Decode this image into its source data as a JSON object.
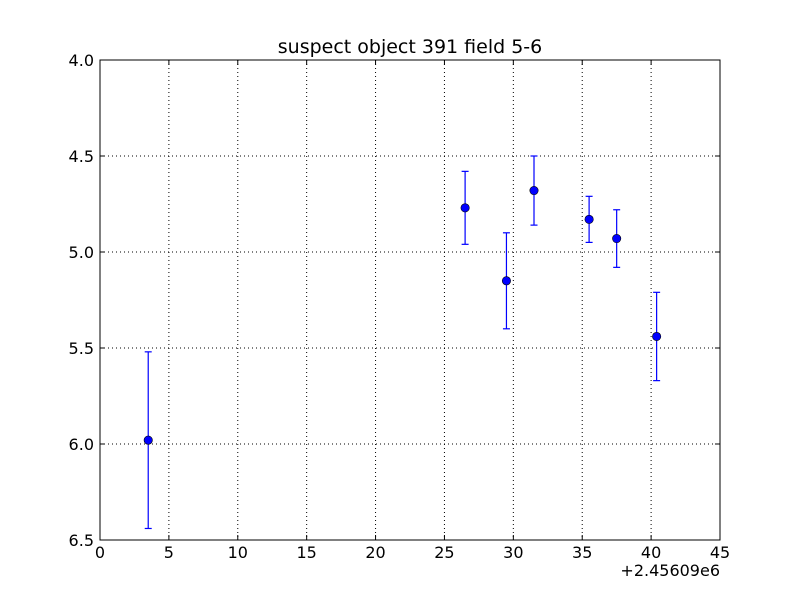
{
  "chart_data": {
    "type": "scatter",
    "title": "suspect object 391 field 5-6",
    "xlabel": "",
    "ylabel": "",
    "x_offset_label": "+2.45609e6",
    "x_offset": 2456090,
    "xlim": [
      0,
      45
    ],
    "ylim": [
      6.5,
      4.0
    ],
    "y_inverted": true,
    "grid": true,
    "x_ticks": [
      0,
      5,
      10,
      15,
      20,
      25,
      30,
      35,
      40,
      45
    ],
    "y_ticks": [
      4.0,
      4.5,
      5.0,
      5.5,
      6.0,
      6.5
    ],
    "x_tick_labels": [
      "0",
      "5",
      "10",
      "15",
      "20",
      "25",
      "30",
      "35",
      "40",
      "45"
    ],
    "y_tick_labels": [
      "4.0",
      "4.5",
      "5.0",
      "5.5",
      "6.0",
      "6.5"
    ],
    "series": [
      {
        "marker": "circle",
        "color": "#0000ff",
        "points": [
          {
            "x": 3.5,
            "y": 5.98,
            "err": 0.46
          },
          {
            "x": 26.5,
            "y": 4.77,
            "err": 0.19
          },
          {
            "x": 29.5,
            "y": 5.15,
            "err": 0.25
          },
          {
            "x": 31.5,
            "y": 4.68,
            "err": 0.18
          },
          {
            "x": 35.5,
            "y": 4.83,
            "err": 0.12
          },
          {
            "x": 37.5,
            "y": 4.93,
            "err": 0.15
          },
          {
            "x": 40.4,
            "y": 5.44,
            "err": 0.23
          }
        ]
      }
    ]
  }
}
